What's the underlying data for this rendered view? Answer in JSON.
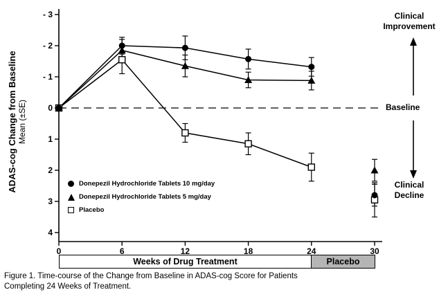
{
  "chart_data": {
    "type": "line",
    "x": [
      0,
      6,
      12,
      18,
      24,
      30
    ],
    "x_ticks": [
      0,
      6,
      12,
      18,
      24,
      30
    ],
    "x_tick_labels": [
      "0",
      "6",
      "12",
      "18",
      "24",
      "30"
    ],
    "y_ticks": [
      -3,
      -2,
      -1,
      0,
      1,
      2,
      3,
      4
    ],
    "y_tick_labels": [
      "- 3",
      "- 2",
      "- 1",
      "0",
      "1",
      "2",
      "3",
      "4"
    ],
    "y_inverted_axis": true,
    "ylim": [
      -3,
      4
    ],
    "xlim": [
      0,
      30
    ],
    "ylabel": "ADAS-cog Change from Baseline",
    "ylabel_sub": "Mean (±SE)",
    "baseline_value": 0,
    "grid": false,
    "legend_position": "lower-left-inside",
    "series": [
      {
        "name": "Donepezil Hydrochloride Tablets 10 mg/day",
        "marker": "filled-circle",
        "values": [
          0,
          -2.0,
          -1.93,
          -1.57,
          -1.32,
          2.8
        ],
        "se": [
          0,
          0.27,
          0.38,
          0.32,
          0.3,
          0.35
        ],
        "connect_through_week": 24
      },
      {
        "name": "Donepezil Hydrochloride Tablets 5 mg/day",
        "marker": "filled-triangle",
        "values": [
          0,
          -1.85,
          -1.35,
          -0.9,
          -0.88,
          2.0
        ],
        "se": [
          0,
          0.35,
          0.35,
          0.25,
          0.3,
          0.35
        ],
        "connect_through_week": 24
      },
      {
        "name": "Placebo",
        "marker": "open-square",
        "values": [
          0,
          -1.55,
          0.8,
          1.15,
          1.9,
          2.95
        ],
        "se": [
          0,
          0.45,
          0.3,
          0.35,
          0.45,
          0.55
        ],
        "connect_through_week": 24
      }
    ],
    "x_band_label": "Weeks of Drug Treatment",
    "placebo_band_label": "Placebo",
    "placebo_band_color": "#b5b5b5",
    "series_color": "#000000"
  },
  "annotations": {
    "clinical_improvement": "Clinical Improvement",
    "baseline": "Baseline",
    "clinical_decline": "Clinical Decline"
  },
  "caption_line1": "Figure 1. Time-course of the Change from Baseline in ADAS-cog Score for Patients",
  "caption_line2": "Completing 24 Weeks of Treatment."
}
